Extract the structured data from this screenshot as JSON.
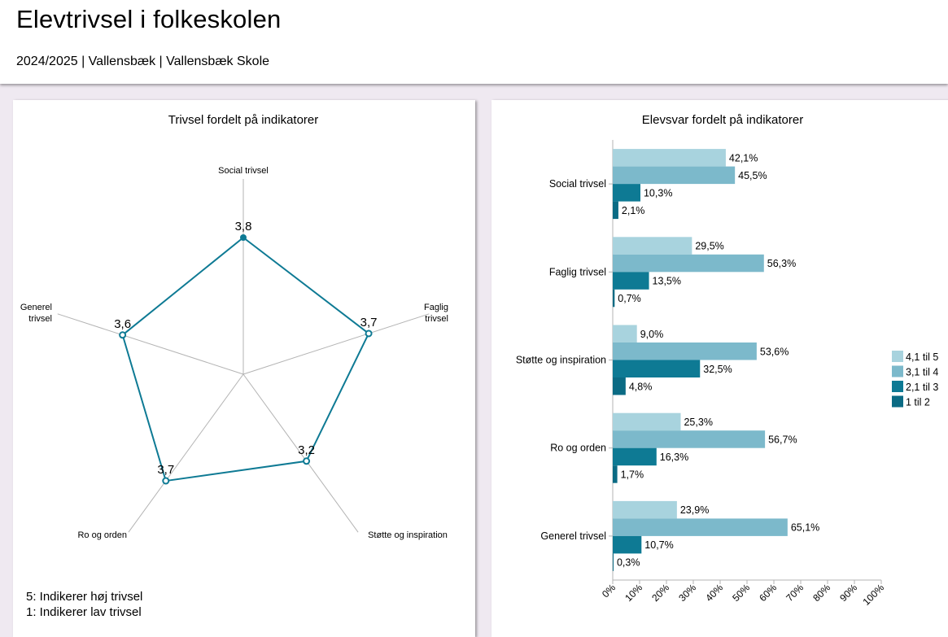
{
  "header": {
    "title": "Elevtrivsel i folkeskolen",
    "subtitle": "2024/2025 | Vallensbæk | Vallensbæk Skole"
  },
  "notes": {
    "high": "5: Indikerer høj trivsel",
    "low": "1: Indikerer lav trivsel"
  },
  "colors": {
    "radar": "#0e7a94",
    "s1": "#a8d3de",
    "s2": "#7cb9cb",
    "s3": "#0e7a94",
    "s4": "#0b6b84"
  },
  "chart_data": [
    {
      "type": "radar",
      "title": "Trivsel fordelt på indikatorer",
      "categories": [
        [
          "Social trivsel"
        ],
        [
          "Faglig",
          "trivsel"
        ],
        [
          "Støtte og inspiration"
        ],
        [
          "Ro og orden"
        ],
        [
          "Generel",
          "trivsel"
        ]
      ],
      "values": [
        3.8,
        3.7,
        3.2,
        3.7,
        3.6
      ],
      "value_labels": [
        "3,8",
        "3,7",
        "3,2",
        "3,7",
        "3,6"
      ],
      "range": [
        1,
        5
      ]
    },
    {
      "type": "bar",
      "orientation": "horizontal",
      "title": "Elevsvar fordelt på indikatorer",
      "categories": [
        "Social trivsel",
        "Faglig trivsel",
        "Støtte og inspiration",
        "Ro og orden",
        "Generel trivsel"
      ],
      "series": [
        {
          "name": "4,1 til 5",
          "values": [
            42.1,
            29.5,
            9.0,
            25.3,
            23.9
          ],
          "labels": [
            "42,1%",
            "29,5%",
            "9,0%",
            "25,3%",
            "23,9%"
          ]
        },
        {
          "name": "3,1 til 4",
          "values": [
            45.5,
            56.3,
            53.6,
            56.7,
            65.1
          ],
          "labels": [
            "45,5%",
            "56,3%",
            "53,6%",
            "56,7%",
            "65,1%"
          ]
        },
        {
          "name": "2,1 til 3",
          "values": [
            10.3,
            13.5,
            32.5,
            16.3,
            10.7
          ],
          "labels": [
            "10,3%",
            "13,5%",
            "32,5%",
            "16,3%",
            "10,7%"
          ]
        },
        {
          "name": "1 til 2",
          "values": [
            2.1,
            0.7,
            4.8,
            1.7,
            0.3
          ],
          "labels": [
            "2,1%",
            "0,7%",
            "4,8%",
            "1,7%",
            "0,3%"
          ]
        }
      ],
      "xlim": [
        0,
        100
      ],
      "xticks": [
        "0%",
        "10%",
        "20%",
        "30%",
        "40%",
        "50%",
        "60%",
        "70%",
        "80%",
        "90%",
        "100%"
      ],
      "legend": "right"
    }
  ]
}
